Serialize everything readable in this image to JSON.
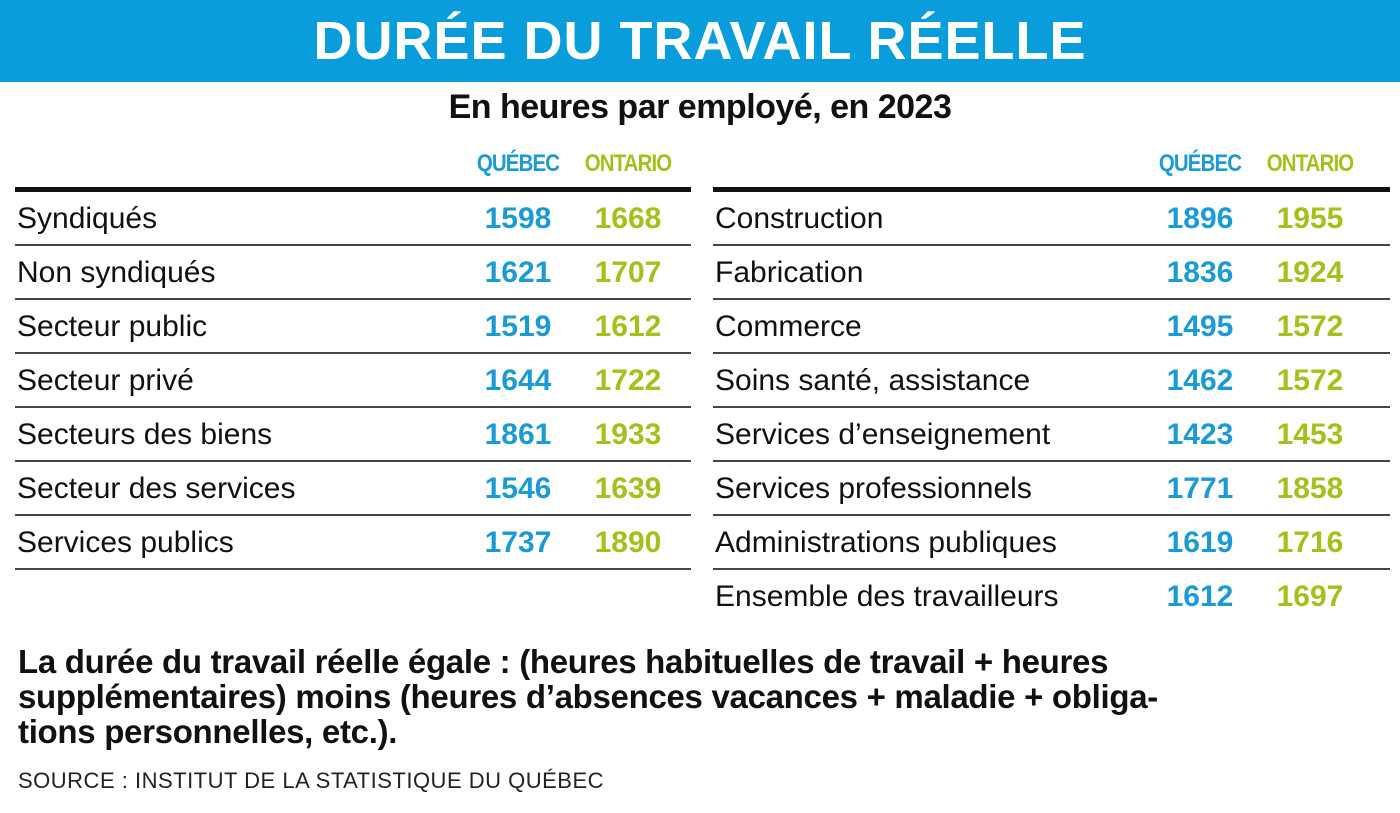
{
  "header": {
    "title": "DURÉE DU TRAVAIL RÉELLE",
    "subtitle": "En heures par employé, en 2023"
  },
  "tables": [
    {
      "columns": [
        "QUÉBEC",
        "ONTARIO"
      ],
      "rows": [
        [
          "Syndiqués",
          1598,
          1668
        ],
        [
          "Non syndiqués",
          1621,
          1707
        ],
        [
          "Secteur public",
          1519,
          1612
        ],
        [
          "Secteur privé",
          1644,
          1722
        ],
        [
          "Secteurs des biens",
          1861,
          1933
        ],
        [
          "Secteur des services",
          1546,
          1639
        ],
        [
          "Services publics",
          1737,
          1890
        ]
      ]
    },
    {
      "columns": [
        "QUÉBEC",
        "ONTARIO"
      ],
      "rows": [
        [
          "Construction",
          1896,
          1955
        ],
        [
          "Fabrication",
          1836,
          1924
        ],
        [
          "Commerce",
          1495,
          1572
        ],
        [
          "Soins santé, assistance",
          1462,
          1572
        ],
        [
          "Services d’enseignement",
          1423,
          1453
        ],
        [
          "Services professionnels",
          1771,
          1858
        ],
        [
          "Administrations publiques",
          1619,
          1716
        ],
        [
          "Ensemble des travailleurs",
          1612,
          1697
        ]
      ]
    }
  ],
  "note": {
    "lines": [
      "La durée du travail réelle égale : (heures habituelles de travail + heures",
      "supplémentaires) moins (heures d’absences vacances + maladie + obliga-",
      "tions personnelles, etc.)."
    ]
  },
  "source": "SOURCE : INSTITUT DE LA STATISTIQUE DU QUÉBEC"
}
